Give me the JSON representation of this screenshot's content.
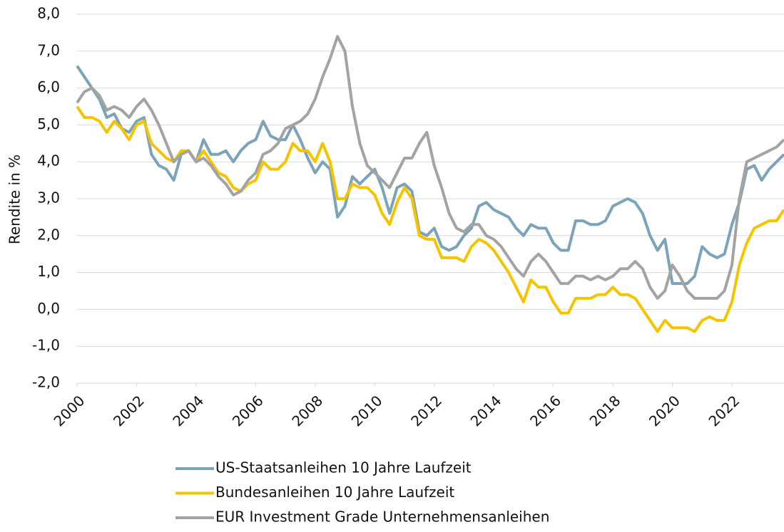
{
  "chart_data": {
    "type": "line",
    "ylabel": "Rendite in %",
    "xlim": [
      2000,
      2023.75
    ],
    "ylim": [
      -2,
      8
    ],
    "yticks": [
      {
        "value": -2,
        "label": "-2,0"
      },
      {
        "value": -1,
        "label": "-1,0"
      },
      {
        "value": 0,
        "label": "0,0"
      },
      {
        "value": 1,
        "label": "1,0"
      },
      {
        "value": 2,
        "label": "2,0"
      },
      {
        "value": 3,
        "label": "3,0"
      },
      {
        "value": 4,
        "label": "4,0"
      },
      {
        "value": 5,
        "label": "5,0"
      },
      {
        "value": 6,
        "label": "6,0"
      },
      {
        "value": 7,
        "label": "7,0"
      },
      {
        "value": 8,
        "label": "8,0"
      }
    ],
    "xticks": [
      2000,
      2002,
      2004,
      2006,
      2008,
      2010,
      2012,
      2014,
      2016,
      2018,
      2020,
      2022
    ],
    "grid": true,
    "legend": "bottom",
    "x": [
      2000,
      2000.25,
      2000.5,
      2000.75,
      2001,
      2001.25,
      2001.5,
      2001.75,
      2002,
      2002.25,
      2002.5,
      2002.75,
      2003,
      2003.25,
      2003.5,
      2003.75,
      2004,
      2004.25,
      2004.5,
      2004.75,
      2005,
      2005.25,
      2005.5,
      2005.75,
      2006,
      2006.25,
      2006.5,
      2006.75,
      2007,
      2007.25,
      2007.5,
      2007.75,
      2008,
      2008.25,
      2008.5,
      2008.75,
      2009,
      2009.25,
      2009.5,
      2009.75,
      2010,
      2010.25,
      2010.5,
      2010.75,
      2011,
      2011.25,
      2011.5,
      2011.75,
      2012,
      2012.25,
      2012.5,
      2012.75,
      2013,
      2013.25,
      2013.5,
      2013.75,
      2014,
      2014.25,
      2014.5,
      2014.75,
      2015,
      2015.25,
      2015.5,
      2015.75,
      2016,
      2016.25,
      2016.5,
      2016.75,
      2017,
      2017.25,
      2017.5,
      2017.75,
      2018,
      2018.25,
      2018.5,
      2018.75,
      2019,
      2019.25,
      2019.5,
      2019.75,
      2020,
      2020.25,
      2020.5,
      2020.75,
      2021,
      2021.25,
      2021.5,
      2021.75,
      2022,
      2022.25,
      2022.5,
      2022.75,
      2023,
      2023.25,
      2023.5,
      2023.75
    ],
    "series": [
      {
        "name": "US-Staatsanleihen 10 Jahre Laufzeit",
        "color": "#7ba3ba",
        "values": [
          6.6,
          6.3,
          6.0,
          5.7,
          5.2,
          5.3,
          4.9,
          4.8,
          5.1,
          5.2,
          4.2,
          3.9,
          3.8,
          3.5,
          4.2,
          4.3,
          4.0,
          4.6,
          4.2,
          4.2,
          4.3,
          4.0,
          4.3,
          4.5,
          4.6,
          5.1,
          4.7,
          4.6,
          4.6,
          5.0,
          4.6,
          4.1,
          3.7,
          4.0,
          3.8,
          2.5,
          2.8,
          3.6,
          3.4,
          3.6,
          3.8,
          3.3,
          2.6,
          3.3,
          3.4,
          3.2,
          2.1,
          2.0,
          2.2,
          1.7,
          1.6,
          1.7,
          2.0,
          2.2,
          2.8,
          2.9,
          2.7,
          2.6,
          2.5,
          2.2,
          2.0,
          2.3,
          2.2,
          2.2,
          1.8,
          1.6,
          1.6,
          2.4,
          2.4,
          2.3,
          2.3,
          2.4,
          2.8,
          2.9,
          3.0,
          2.9,
          2.6,
          2.0,
          1.6,
          1.9,
          0.7,
          0.7,
          0.7,
          0.9,
          1.7,
          1.5,
          1.4,
          1.5,
          2.3,
          2.9,
          3.8,
          3.9,
          3.5,
          3.8,
          4.0,
          4.2
        ]
      },
      {
        "name": "Bundesanleihen 10 Jahre Laufzeit",
        "color": "#f5c400",
        "values": [
          5.5,
          5.2,
          5.2,
          5.1,
          4.8,
          5.1,
          4.9,
          4.6,
          5.0,
          5.1,
          4.5,
          4.3,
          4.1,
          4.0,
          4.3,
          4.3,
          4.0,
          4.3,
          4.0,
          3.7,
          3.6,
          3.3,
          3.2,
          3.4,
          3.5,
          4.0,
          3.8,
          3.8,
          4.0,
          4.5,
          4.3,
          4.3,
          4.0,
          4.5,
          4.0,
          3.0,
          3.0,
          3.4,
          3.3,
          3.3,
          3.1,
          2.6,
          2.3,
          2.9,
          3.3,
          3.0,
          2.0,
          1.9,
          1.9,
          1.4,
          1.4,
          1.4,
          1.3,
          1.7,
          1.9,
          1.8,
          1.6,
          1.3,
          1.0,
          0.6,
          0.2,
          0.8,
          0.6,
          0.6,
          0.2,
          -0.1,
          -0.1,
          0.3,
          0.3,
          0.3,
          0.4,
          0.4,
          0.6,
          0.4,
          0.4,
          0.3,
          0.0,
          -0.3,
          -0.6,
          -0.3,
          -0.5,
          -0.5,
          -0.5,
          -0.6,
          -0.3,
          -0.2,
          -0.3,
          -0.3,
          0.2,
          1.2,
          1.8,
          2.2,
          2.3,
          2.4,
          2.4,
          2.7
        ]
      },
      {
        "name": "EUR Investment Grade Unternehmensanleihen",
        "color": "#a3a3a3",
        "values": [
          5.6,
          5.9,
          6.0,
          5.8,
          5.4,
          5.5,
          5.4,
          5.2,
          5.5,
          5.7,
          5.4,
          5.0,
          4.5,
          4.0,
          4.2,
          4.3,
          4.0,
          4.1,
          3.9,
          3.6,
          3.4,
          3.1,
          3.2,
          3.5,
          3.7,
          4.2,
          4.3,
          4.5,
          4.9,
          5.0,
          5.1,
          5.3,
          5.7,
          6.3,
          6.8,
          7.4,
          7.0,
          5.5,
          4.5,
          3.9,
          3.7,
          3.5,
          3.3,
          3.7,
          4.1,
          4.1,
          4.5,
          4.8,
          3.9,
          3.3,
          2.6,
          2.2,
          2.1,
          2.3,
          2.3,
          2.0,
          1.9,
          1.7,
          1.4,
          1.1,
          0.9,
          1.3,
          1.5,
          1.3,
          1.0,
          0.7,
          0.7,
          0.9,
          0.9,
          0.8,
          0.9,
          0.8,
          0.9,
          1.1,
          1.1,
          1.3,
          1.1,
          0.6,
          0.3,
          0.5,
          1.2,
          0.9,
          0.5,
          0.3,
          0.3,
          0.3,
          0.3,
          0.5,
          1.2,
          3.0,
          4.0,
          4.1,
          4.2,
          4.3,
          4.4,
          4.6
        ]
      }
    ]
  }
}
